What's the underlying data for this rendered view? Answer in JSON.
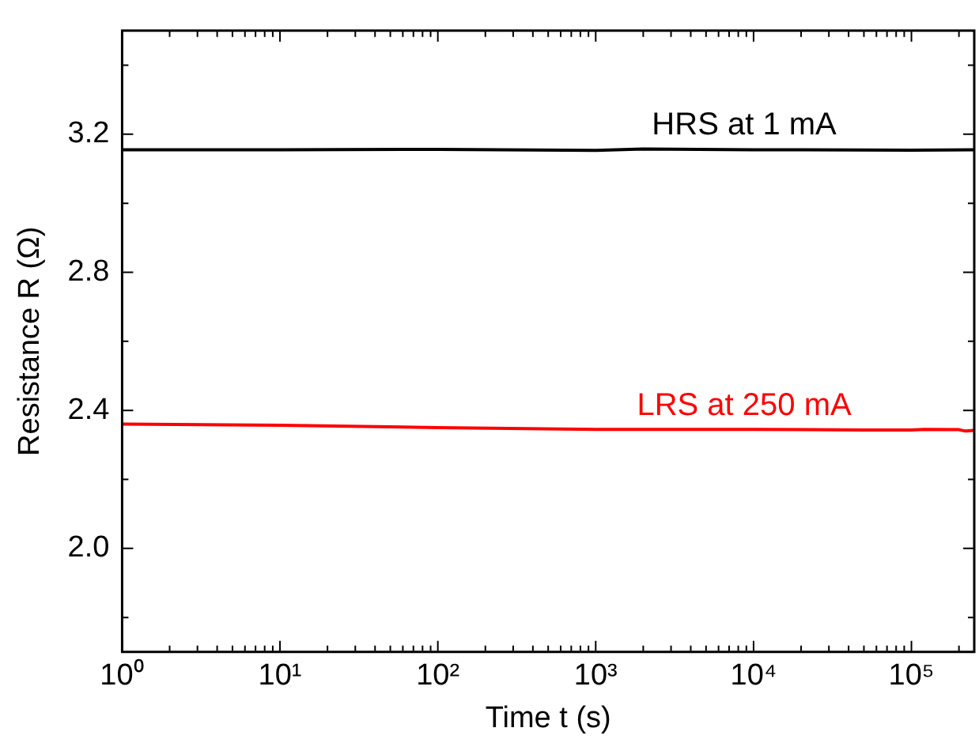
{
  "chart_data": {
    "type": "line",
    "xlabel": "Time t (s)",
    "ylabel": "Resistance R (Ω)",
    "log": "x",
    "grid": false,
    "legend": false,
    "marker": "none",
    "line_style": "solid",
    "xlim": [
      1,
      250000
    ],
    "xticks": [
      {
        "value": 1,
        "label": "10⁰"
      },
      {
        "value": 2,
        "label": null
      },
      {
        "value": 3,
        "label": null
      },
      {
        "value": 4,
        "label": null
      },
      {
        "value": 5,
        "label": null
      },
      {
        "value": 6,
        "label": null
      },
      {
        "value": 7,
        "label": null
      },
      {
        "value": 8,
        "label": null
      },
      {
        "value": 9,
        "label": null
      },
      {
        "value": 10,
        "label": "10¹"
      },
      {
        "value": 20,
        "label": null
      },
      {
        "value": 30,
        "label": null
      },
      {
        "value": 40,
        "label": null
      },
      {
        "value": 50,
        "label": null
      },
      {
        "value": 60,
        "label": null
      },
      {
        "value": 70,
        "label": null
      },
      {
        "value": 80,
        "label": null
      },
      {
        "value": 90,
        "label": null
      },
      {
        "value": 100,
        "label": "10²"
      },
      {
        "value": 200,
        "label": null
      },
      {
        "value": 300,
        "label": null
      },
      {
        "value": 400,
        "label": null
      },
      {
        "value": 500,
        "label": null
      },
      {
        "value": 600,
        "label": null
      },
      {
        "value": 700,
        "label": null
      },
      {
        "value": 800,
        "label": null
      },
      {
        "value": 900,
        "label": null
      },
      {
        "value": 1000,
        "label": "10³"
      },
      {
        "value": 2000,
        "label": null
      },
      {
        "value": 3000,
        "label": null
      },
      {
        "value": 4000,
        "label": null
      },
      {
        "value": 5000,
        "label": null
      },
      {
        "value": 6000,
        "label": null
      },
      {
        "value": 7000,
        "label": null
      },
      {
        "value": 8000,
        "label": null
      },
      {
        "value": 9000,
        "label": null
      },
      {
        "value": 10000,
        "label": "10⁴"
      },
      {
        "value": 20000,
        "label": null
      },
      {
        "value": 30000,
        "label": null
      },
      {
        "value": 40000,
        "label": null
      },
      {
        "value": 50000,
        "label": null
      },
      {
        "value": 60000,
        "label": null
      },
      {
        "value": 70000,
        "label": null
      },
      {
        "value": 80000,
        "label": null
      },
      {
        "value": 90000,
        "label": null
      },
      {
        "value": 100000,
        "label": "10⁵"
      },
      {
        "value": 200000,
        "label": null
      }
    ],
    "ylim": [
      1.7,
      3.5
    ],
    "yticks": [
      {
        "value": 1.8,
        "label": null
      },
      {
        "value": 2.0,
        "label": "2.0"
      },
      {
        "value": 2.2,
        "label": null
      },
      {
        "value": 2.4,
        "label": "2.4"
      },
      {
        "value": 2.6,
        "label": null
      },
      {
        "value": 2.8,
        "label": "2.8"
      },
      {
        "value": 3.0,
        "label": null
      },
      {
        "value": 3.2,
        "label": "3.2"
      },
      {
        "value": 3.4,
        "label": null
      }
    ],
    "series": [
      {
        "name": "HRS at 1 mA",
        "color": "#000000",
        "x": [
          1,
          10,
          100,
          1000,
          2000,
          10000,
          100000,
          250000
        ],
        "values": [
          3.155,
          3.155,
          3.156,
          3.153,
          3.157,
          3.155,
          3.154,
          3.155
        ]
      },
      {
        "name": "LRS at 250 mA",
        "color": "#ff0000",
        "x": [
          1,
          10,
          100,
          1000,
          10000,
          50000,
          100000,
          120000,
          200000,
          220000,
          250000
        ],
        "values": [
          2.36,
          2.357,
          2.35,
          2.345,
          2.345,
          2.343,
          2.343,
          2.345,
          2.344,
          2.34,
          2.342
        ]
      }
    ]
  }
}
